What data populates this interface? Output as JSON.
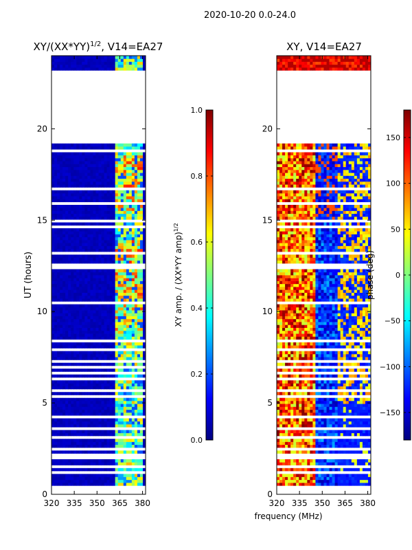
{
  "figure": {
    "suptitle": "2020-10-20 0.0-24.0",
    "common_xlabel": "frequency (MHz)"
  },
  "chart_data": [
    {
      "type": "heatmap",
      "title": "XY/(XX*YY)^1/2, V14=EA27",
      "title_main": "XY/(XX*YY)",
      "title_exp": "1/2",
      "title_tail": ", V14=EA27",
      "xlabel": "",
      "ylabel": "UT (hours)",
      "xlim": [
        320,
        382
      ],
      "ylim": [
        0,
        24
      ],
      "xticks": [
        320,
        335,
        350,
        365,
        380
      ],
      "yticks": [
        0,
        5,
        10,
        15,
        20
      ],
      "colorbar": {
        "label": "XY amp. / (XX*YY amp)^1/2",
        "label_main": "XY amp. / (XX*YY amp)",
        "label_exp": "1/2",
        "range": [
          0.0,
          1.0
        ],
        "ticks": [
          0.0,
          0.2,
          0.4,
          0.6,
          0.8,
          1.0
        ],
        "tick_labels": [
          "0.0",
          "0.2",
          "0.4",
          "0.6",
          "0.8",
          "1.0"
        ],
        "colormap": "jet"
      },
      "no_data_hours": [
        [
          23.1,
          19.2
        ]
      ],
      "notes": "Low values (~0.05) across most frequencies; elevated amplitude (0.4-0.9) concentrated near 362-380 MHz."
    },
    {
      "type": "heatmap",
      "title": "XY, V14=EA27",
      "xlabel": "",
      "ylabel": "",
      "xlim": [
        320,
        382
      ],
      "ylim": [
        0,
        24
      ],
      "xticks": [
        320,
        335,
        350,
        365,
        380
      ],
      "yticks": [
        0,
        5,
        10,
        15,
        20
      ],
      "colorbar": {
        "label": "phase (deg)",
        "range": [
          -180,
          180
        ],
        "ticks": [
          -150,
          -100,
          -50,
          0,
          50,
          100,
          150
        ],
        "tick_labels": [
          "−150",
          "−100",
          "−50",
          "0",
          "50",
          "100",
          "150"
        ],
        "colormap": "jet"
      },
      "no_data_hours": [
        [
          23.1,
          19.2
        ]
      ],
      "notes": "Phase varies widely; noisy red/yellow region near 320-345 MHz, blue near 345-360 MHz, mixed near 362-380 MHz."
    }
  ],
  "colors": {
    "axis": "#000000",
    "background": "#ffffff",
    "gap": "#ffffff"
  }
}
